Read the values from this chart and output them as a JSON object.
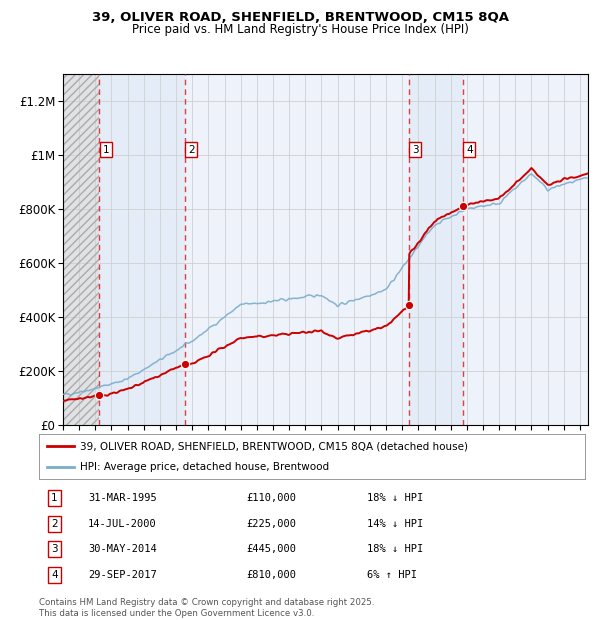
{
  "title_line1": "39, OLIVER ROAD, SHENFIELD, BRENTWOOD, CM15 8QA",
  "title_line2": "Price paid vs. HM Land Registry's House Price Index (HPI)",
  "sales": [
    {
      "date_num": 1995.25,
      "price": 110000,
      "label": "1"
    },
    {
      "date_num": 2000.54,
      "price": 225000,
      "label": "2"
    },
    {
      "date_num": 2014.41,
      "price": 445000,
      "label": "3"
    },
    {
      "date_num": 2017.75,
      "price": 810000,
      "label": "4"
    }
  ],
  "sale_annotations": [
    {
      "num": "1",
      "date": "31-MAR-1995",
      "price": "£110,000",
      "hpi": "18% ↓ HPI"
    },
    {
      "num": "2",
      "date": "14-JUL-2000",
      "price": "£225,000",
      "hpi": "14% ↓ HPI"
    },
    {
      "num": "3",
      "date": "30-MAY-2014",
      "price": "£445,000",
      "hpi": "18% ↓ HPI"
    },
    {
      "num": "4",
      "date": "29-SEP-2017",
      "price": "£810,000",
      "hpi": "6% ↑ HPI"
    }
  ],
  "legend_entries": [
    "39, OLIVER ROAD, SHENFIELD, BRENTWOOD, CM15 8QA (detached house)",
    "HPI: Average price, detached house, Brentwood"
  ],
  "footer": "Contains HM Land Registry data © Crown copyright and database right 2025.\nThis data is licensed under the Open Government Licence v3.0.",
  "xmin": 1993.0,
  "xmax": 2025.5,
  "ymin": 0,
  "ymax": 1300000,
  "yticks": [
    0,
    200000,
    400000,
    600000,
    800000,
    1000000,
    1200000
  ],
  "ylabels": [
    "£0",
    "£200K",
    "£400K",
    "£600K",
    "£800K",
    "£1M",
    "£1.2M"
  ],
  "xticks": [
    1993,
    1994,
    1995,
    1996,
    1997,
    1998,
    1999,
    2000,
    2001,
    2002,
    2003,
    2004,
    2005,
    2006,
    2007,
    2008,
    2009,
    2010,
    2011,
    2012,
    2013,
    2014,
    2015,
    2016,
    2017,
    2018,
    2019,
    2020,
    2021,
    2022,
    2023,
    2024,
    2025
  ],
  "line_color_red": "#cc0000",
  "line_color_blue": "#7aadcc",
  "bg_color": "#ffffff",
  "plot_bg": "#eef2fa",
  "grid_color": "#d0d0d0",
  "dashed_line_color": "#dd2222"
}
